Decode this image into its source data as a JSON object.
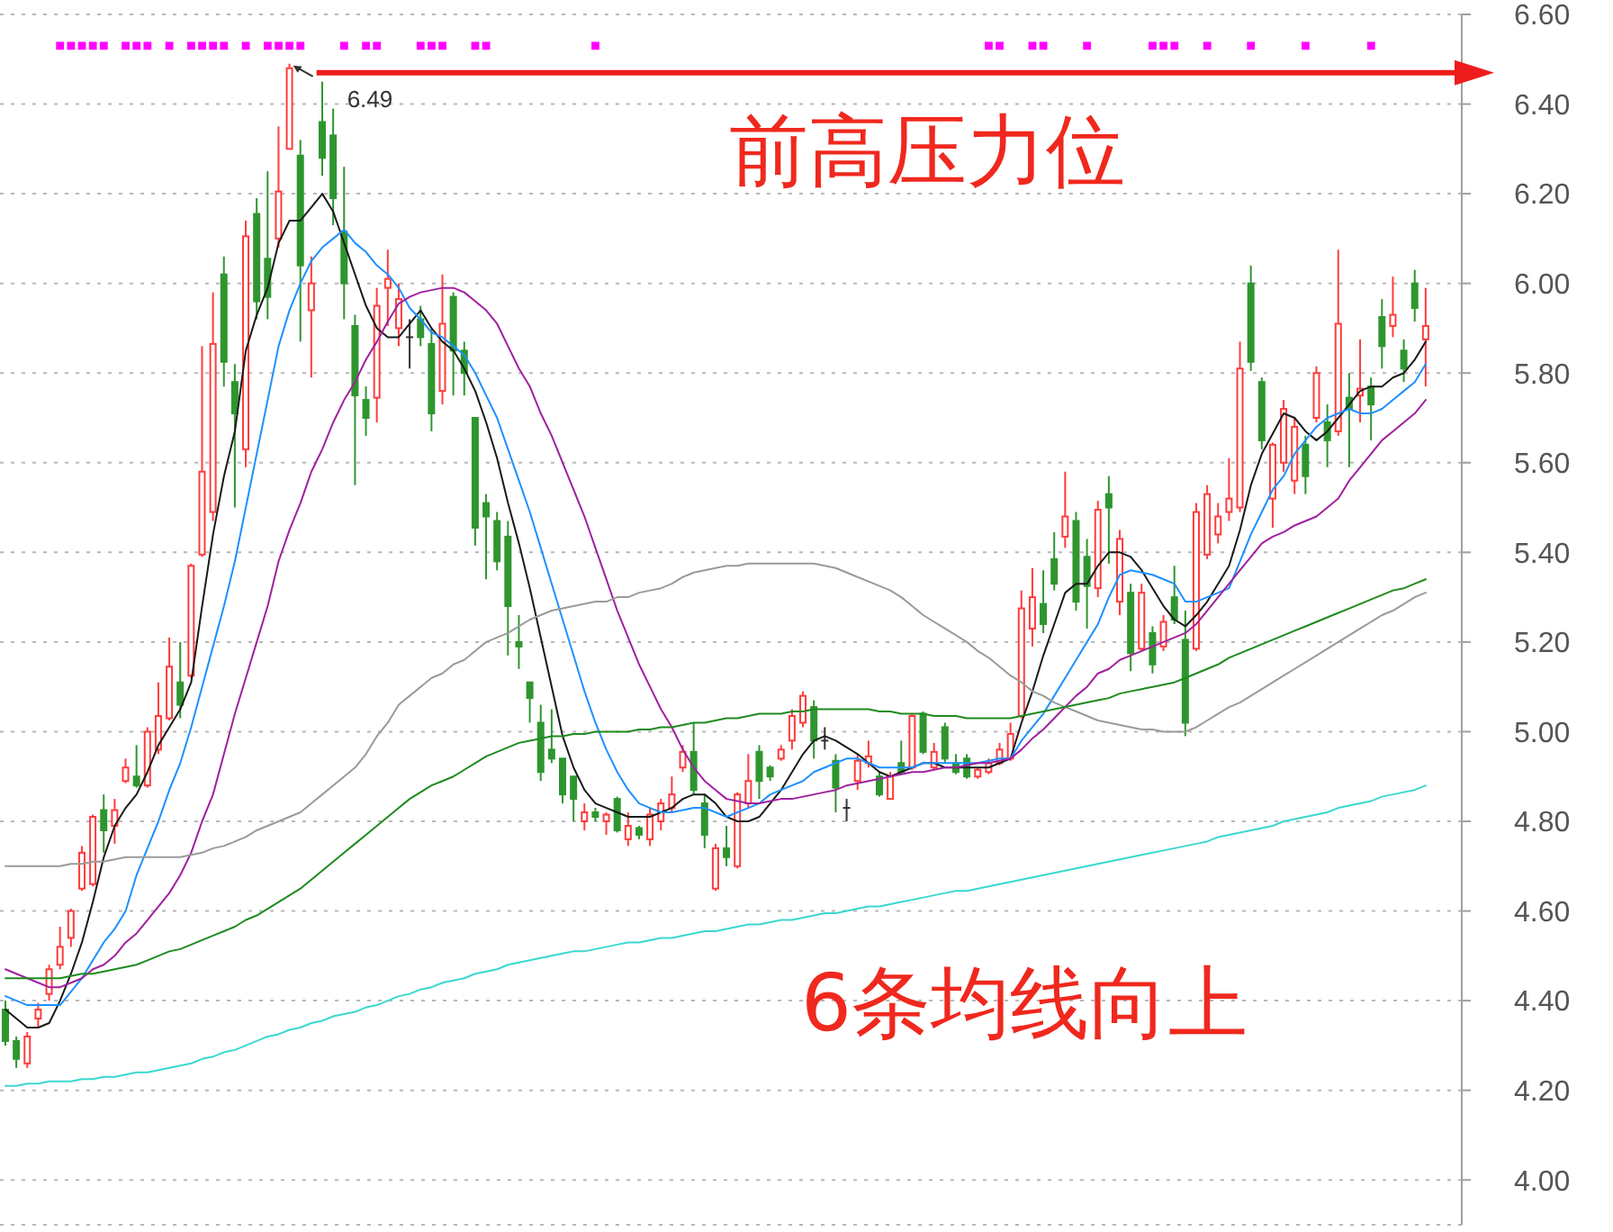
{
  "chart_data": {
    "type": "candlestick",
    "categories": [
      null,
      null,
      null,
      null,
      null,
      null,
      null,
      null,
      null,
      null,
      null,
      null,
      null,
      null,
      null,
      null,
      null,
      null,
      null,
      null,
      null,
      null,
      null,
      null,
      null,
      null,
      null,
      null,
      null,
      null,
      null,
      null,
      null,
      null,
      null,
      null,
      null,
      null,
      null,
      null,
      null,
      null,
      null,
      null,
      null,
      null,
      null,
      null,
      null,
      null,
      null,
      null,
      null,
      null,
      null,
      null,
      null,
      null,
      null,
      null,
      null,
      null,
      null,
      null,
      null,
      null,
      null,
      null,
      null,
      null,
      null,
      null,
      null,
      null,
      null,
      null,
      null,
      null,
      null,
      null,
      null,
      null,
      null,
      null,
      null,
      null,
      null,
      null,
      null,
      null,
      null,
      null,
      null,
      null,
      null,
      null,
      null,
      null,
      null,
      null,
      null,
      null,
      null,
      null,
      null,
      null,
      null,
      null,
      null,
      null,
      null,
      null,
      null,
      null,
      null,
      null,
      null,
      null,
      null,
      null,
      null,
      null,
      null,
      null,
      null,
      null,
      null,
      null,
      null,
      null,
      null
    ],
    "ohlc": [
      [
        4.38,
        4.4,
        4.3,
        4.31
      ],
      [
        4.31,
        4.32,
        4.25,
        4.27
      ],
      [
        4.26,
        4.33,
        4.25,
        4.32
      ],
      [
        4.36,
        4.395,
        4.34,
        4.38
      ],
      [
        4.415,
        4.48,
        4.4,
        4.47
      ],
      [
        4.48,
        4.565,
        4.47,
        4.52
      ],
      [
        4.54,
        4.605,
        4.52,
        4.6
      ],
      [
        4.65,
        4.745,
        4.645,
        4.73
      ],
      [
        4.66,
        4.815,
        4.655,
        4.81
      ],
      [
        4.825,
        4.86,
        4.73,
        4.78
      ],
      [
        4.79,
        4.85,
        4.75,
        4.825
      ],
      [
        4.89,
        4.94,
        4.885,
        4.92
      ],
      [
        4.9,
        4.97,
        4.875,
        4.88
      ],
      [
        4.88,
        5.01,
        4.875,
        5.0
      ],
      [
        4.96,
        5.11,
        4.95,
        5.035
      ],
      [
        5.03,
        5.21,
        5.025,
        5.145
      ],
      [
        5.11,
        5.2,
        5.03,
        5.06
      ],
      [
        5.125,
        5.375,
        5.12,
        5.37
      ],
      [
        5.395,
        5.86,
        5.39,
        5.58
      ],
      [
        5.49,
        5.98,
        5.47,
        5.865
      ],
      [
        6.02,
        6.06,
        5.77,
        5.825
      ],
      [
        5.78,
        5.82,
        5.5,
        5.71
      ],
      [
        5.63,
        6.14,
        5.59,
        6.105
      ],
      [
        6.155,
        6.19,
        5.92,
        5.96
      ],
      [
        6.055,
        6.25,
        5.92,
        5.97
      ],
      [
        6.1,
        6.35,
        6.08,
        6.205
      ],
      [
        6.3,
        6.49,
        6.3,
        6.48
      ],
      [
        6.285,
        6.32,
        5.87,
        6.04
      ],
      [
        5.94,
        6.06,
        5.79,
        6.0
      ],
      [
        6.36,
        6.45,
        6.24,
        6.28
      ],
      [
        6.33,
        6.39,
        6.13,
        6.19
      ],
      [
        6.115,
        6.26,
        5.92,
        6.0
      ],
      [
        5.905,
        5.93,
        5.55,
        5.75
      ],
      [
        5.74,
        5.77,
        5.66,
        5.7
      ],
      [
        5.745,
        5.99,
        5.69,
        5.95
      ],
      [
        5.99,
        6.075,
        5.905,
        6.01
      ],
      [
        5.9,
        6.0,
        5.86,
        5.965
      ],
      [
        5.88,
        5.92,
        5.81,
        5.88
      ],
      [
        5.92,
        5.95,
        5.86,
        5.88
      ],
      [
        5.865,
        5.9,
        5.67,
        5.71
      ],
      [
        5.76,
        6.02,
        5.73,
        5.91
      ],
      [
        5.97,
        5.98,
        5.75,
        5.85
      ],
      [
        5.85,
        5.87,
        5.75,
        5.8
      ],
      [
        5.7,
        5.7,
        5.415,
        5.455
      ],
      [
        5.51,
        5.53,
        5.34,
        5.48
      ],
      [
        5.47,
        5.49,
        5.36,
        5.38
      ],
      [
        5.435,
        5.47,
        5.17,
        5.28
      ],
      [
        5.2,
        5.26,
        5.14,
        5.19
      ],
      [
        5.11,
        5.11,
        5.02,
        5.075
      ],
      [
        5.02,
        5.06,
        4.89,
        4.91
      ],
      [
        4.96,
        5.05,
        4.93,
        4.94
      ],
      [
        4.94,
        4.94,
        4.84,
        4.86
      ],
      [
        4.9,
        4.9,
        4.8,
        4.85
      ],
      [
        4.8,
        4.84,
        4.78,
        4.82
      ],
      [
        4.82,
        4.83,
        4.8,
        4.81
      ],
      [
        4.8,
        4.82,
        4.77,
        4.815
      ],
      [
        4.85,
        4.855,
        4.775,
        4.78
      ],
      [
        4.76,
        4.82,
        4.745,
        4.79
      ],
      [
        4.785,
        4.79,
        4.76,
        4.77
      ],
      [
        4.76,
        4.83,
        4.745,
        4.815
      ],
      [
        4.8,
        4.85,
        4.78,
        4.84
      ],
      [
        4.83,
        4.9,
        4.82,
        4.86
      ],
      [
        4.92,
        4.97,
        4.91,
        4.955
      ],
      [
        4.955,
        5.02,
        4.86,
        4.87
      ],
      [
        4.84,
        4.86,
        4.74,
        4.77
      ],
      [
        4.65,
        4.75,
        4.645,
        4.74
      ],
      [
        4.74,
        4.79,
        4.7,
        4.72
      ],
      [
        4.7,
        4.865,
        4.695,
        4.86
      ],
      [
        4.84,
        4.95,
        4.83,
        4.89
      ],
      [
        4.955,
        4.97,
        4.85,
        4.89
      ],
      [
        4.92,
        4.925,
        4.89,
        4.9
      ],
      [
        4.94,
        4.97,
        4.935,
        4.96
      ],
      [
        4.98,
        5.05,
        4.96,
        5.035
      ],
      [
        5.02,
        5.09,
        5.01,
        5.08
      ],
      [
        5.055,
        5.07,
        4.94,
        4.98
      ],
      [
        4.98,
        5.01,
        4.96,
        4.98
      ],
      [
        4.935,
        4.95,
        4.82,
        4.875
      ],
      [
        4.83,
        4.85,
        4.8,
        4.83
      ],
      [
        4.89,
        4.95,
        4.87,
        4.935
      ],
      [
        4.93,
        4.98,
        4.92,
        4.945
      ],
      [
        4.9,
        4.91,
        4.855,
        4.86
      ],
      [
        4.85,
        4.91,
        4.85,
        4.9
      ],
      [
        4.93,
        4.98,
        4.905,
        4.91
      ],
      [
        4.92,
        5.04,
        4.915,
        5.035
      ],
      [
        5.04,
        5.045,
        4.95,
        4.955
      ],
      [
        4.92,
        4.975,
        4.915,
        4.955
      ],
      [
        5.01,
        5.02,
        4.93,
        4.94
      ],
      [
        4.93,
        4.95,
        4.905,
        4.91
      ],
      [
        4.94,
        4.95,
        4.895,
        4.9
      ],
      [
        4.9,
        4.92,
        4.895,
        4.915
      ],
      [
        4.91,
        4.94,
        4.905,
        4.93
      ],
      [
        4.93,
        4.975,
        4.925,
        4.96
      ],
      [
        4.94,
        5.02,
        4.935,
        4.995
      ],
      [
        5.035,
        5.315,
        5.03,
        5.275
      ],
      [
        5.23,
        5.365,
        5.19,
        5.3
      ],
      [
        5.285,
        5.36,
        5.22,
        5.24
      ],
      [
        5.385,
        5.445,
        5.315,
        5.33
      ],
      [
        5.435,
        5.58,
        5.41,
        5.48
      ],
      [
        5.47,
        5.49,
        5.27,
        5.29
      ],
      [
        5.39,
        5.43,
        5.23,
        5.325
      ],
      [
        5.32,
        5.515,
        5.3,
        5.495
      ],
      [
        5.53,
        5.57,
        5.375,
        5.5
      ],
      [
        5.29,
        5.45,
        5.26,
        5.43
      ],
      [
        5.31,
        5.33,
        5.135,
        5.175
      ],
      [
        5.185,
        5.33,
        5.18,
        5.31
      ],
      [
        5.22,
        5.235,
        5.13,
        5.15
      ],
      [
        5.19,
        5.26,
        5.18,
        5.245
      ],
      [
        5.3,
        5.37,
        5.24,
        5.25
      ],
      [
        5.205,
        5.27,
        4.99,
        5.02
      ],
      [
        5.185,
        5.51,
        5.18,
        5.49
      ],
      [
        5.395,
        5.55,
        5.385,
        5.53
      ],
      [
        5.44,
        5.51,
        5.42,
        5.48
      ],
      [
        5.49,
        5.61,
        5.47,
        5.52
      ],
      [
        5.5,
        5.87,
        5.49,
        5.81
      ],
      [
        6.0,
        6.04,
        5.805,
        5.825
      ],
      [
        5.78,
        5.79,
        5.63,
        5.65
      ],
      [
        5.52,
        5.645,
        5.455,
        5.64
      ],
      [
        5.6,
        5.74,
        5.58,
        5.72
      ],
      [
        5.56,
        5.7,
        5.53,
        5.68
      ],
      [
        5.64,
        5.66,
        5.53,
        5.57
      ],
      [
        5.7,
        5.815,
        5.69,
        5.8
      ],
      [
        5.69,
        5.73,
        5.59,
        5.65
      ],
      [
        5.67,
        6.075,
        5.66,
        5.91
      ],
      [
        5.745,
        5.8,
        5.59,
        5.72
      ],
      [
        5.75,
        5.875,
        5.69,
        5.765
      ],
      [
        5.77,
        5.79,
        5.65,
        5.73
      ],
      [
        5.925,
        5.965,
        5.81,
        5.86
      ],
      [
        5.905,
        6.015,
        5.88,
        5.93
      ],
      [
        5.85,
        5.875,
        5.78,
        5.81
      ],
      [
        6.0,
        6.03,
        5.915,
        5.945
      ],
      [
        5.875,
        5.99,
        5.77,
        5.905
      ]
    ],
    "colors": [
      "#2f962f",
      "#2f962f",
      "#ff3c3c",
      "#ff3c3c",
      "#ff3c3c",
      "#ff3c3c",
      "#ff3c3c",
      "#ff3c3c",
      "#ff3c3c",
      "#2f962f",
      "#ff3c3c",
      "#ff3c3c",
      "#2f962f",
      "#ff3c3c",
      "#ff3c3c",
      "#ff3c3c",
      "#2f962f",
      "#ff3c3c",
      "#ff3c3c",
      "#ff3c3c",
      "#2f962f",
      "#2f962f",
      "#ff3c3c",
      "#2f962f",
      "#2f962f",
      "#ff3c3c",
      "#ff3c3c",
      "#2f962f",
      "#ff3c3c",
      "#2f962f",
      "#2f962f",
      "#2f962f",
      "#2f962f",
      "#2f962f",
      "#ff3c3c",
      "#ff3c3c",
      "#ff3c3c",
      "#333333",
      "#2f962f",
      "#2f962f",
      "#ff3c3c",
      "#2f962f",
      "#2f962f",
      "#2f962f",
      "#2f962f",
      "#2f962f",
      "#2f962f",
      "#2f962f",
      "#2f962f",
      "#2f962f",
      "#2f962f",
      "#2f962f",
      "#2f962f",
      "#ff3c3c",
      "#2f962f",
      "#ff3c3c",
      "#2f962f",
      "#ff3c3c",
      "#2f962f",
      "#ff3c3c",
      "#ff3c3c",
      "#ff3c3c",
      "#ff3c3c",
      "#2f962f",
      "#2f962f",
      "#ff3c3c",
      "#2f962f",
      "#ff3c3c",
      "#ff3c3c",
      "#2f962f",
      "#2f962f",
      "#ff3c3c",
      "#ff3c3c",
      "#ff3c3c",
      "#2f962f",
      "#333333",
      "#2f962f",
      "#333333",
      "#ff3c3c",
      "#ff3c3c",
      "#2f962f",
      "#ff3c3c",
      "#2f962f",
      "#ff3c3c",
      "#2f962f",
      "#ff3c3c",
      "#2f962f",
      "#2f962f",
      "#2f962f",
      "#ff3c3c",
      "#ff3c3c",
      "#ff3c3c",
      "#ff3c3c",
      "#ff3c3c",
      "#ff3c3c",
      "#2f962f",
      "#2f962f",
      "#ff3c3c",
      "#2f962f",
      "#2f962f",
      "#ff3c3c",
      "#2f962f",
      "#ff3c3c",
      "#2f962f",
      "#ff3c3c",
      "#2f962f",
      "#ff3c3c",
      "#2f962f",
      "#2f962f",
      "#ff3c3c",
      "#ff3c3c",
      "#ff3c3c",
      "#ff3c3c",
      "#ff3c3c",
      "#2f962f",
      "#2f962f",
      "#ff3c3c",
      "#ff3c3c",
      "#ff3c3c",
      "#2f962f",
      "#ff3c3c",
      "#2f962f",
      "#ff3c3c",
      "#2f962f",
      "#ff3c3c",
      "#2f962f",
      "#2f962f",
      "#ff3c3c",
      "#2f962f",
      "#2f962f",
      "#ff3c3c"
    ],
    "series": [
      {
        "type": "line",
        "color": "#1a1a1a",
        "values": [
          4.38,
          4.36,
          4.34,
          4.34,
          4.35,
          4.4,
          4.46,
          4.53,
          4.62,
          4.72,
          4.79,
          4.83,
          4.86,
          4.91,
          4.97,
          5.01,
          5.05,
          5.11,
          5.28,
          5.44,
          5.57,
          5.67,
          5.85,
          5.93,
          5.99,
          6.09,
          6.14,
          6.14,
          6.17,
          6.2,
          6.16,
          6.09,
          6.02,
          5.95,
          5.9,
          5.88,
          5.88,
          5.91,
          5.94,
          5.9,
          5.87,
          5.85,
          5.81,
          5.76,
          5.69,
          5.61,
          5.51,
          5.42,
          5.32,
          5.21,
          5.1,
          4.99,
          4.92,
          4.87,
          4.84,
          4.83,
          4.82,
          4.81,
          4.81,
          4.81,
          4.82,
          4.83,
          4.85,
          4.86,
          4.86,
          4.84,
          4.81,
          4.8,
          4.8,
          4.81,
          4.84,
          4.87,
          4.91,
          4.95,
          4.98,
          4.99,
          4.98,
          4.965,
          4.95,
          4.93,
          4.91,
          4.9,
          4.91,
          4.92,
          4.93,
          4.93,
          4.92,
          4.92,
          4.92,
          4.92,
          4.92,
          4.93,
          4.94,
          5.02,
          5.09,
          5.17,
          5.24,
          5.31,
          5.33,
          5.33,
          5.37,
          5.4,
          5.4,
          5.39,
          5.36,
          5.32,
          5.28,
          5.25,
          5.235,
          5.26,
          5.29,
          5.33,
          5.37,
          5.45,
          5.55,
          5.62,
          5.665,
          5.71,
          5.7,
          5.67,
          5.65,
          5.67,
          5.7,
          5.73,
          5.76,
          5.77,
          5.77,
          5.79,
          5.8,
          5.83,
          5.87
        ]
      },
      {
        "type": "line",
        "color": "#1e90ff",
        "values": [
          4.41,
          4.4,
          4.39,
          4.39,
          4.39,
          4.39,
          4.42,
          4.45,
          4.49,
          4.53,
          4.56,
          4.6,
          4.68,
          4.74,
          4.8,
          4.87,
          4.93,
          5.01,
          5.1,
          5.19,
          5.28,
          5.38,
          5.5,
          5.62,
          5.74,
          5.86,
          5.94,
          6.0,
          6.05,
          6.08,
          6.1,
          6.12,
          6.09,
          6.07,
          6.04,
          6.02,
          5.99,
          5.945,
          5.92,
          5.89,
          5.88,
          5.86,
          5.84,
          5.8,
          5.75,
          5.7,
          5.63,
          5.56,
          5.49,
          5.41,
          5.33,
          5.25,
          5.17,
          5.09,
          5.02,
          4.96,
          4.91,
          4.87,
          4.84,
          4.83,
          4.82,
          4.82,
          4.825,
          4.83,
          4.83,
          4.82,
          4.81,
          4.82,
          4.83,
          4.84,
          4.86,
          4.87,
          4.88,
          4.89,
          4.91,
          4.92,
          4.93,
          4.94,
          4.94,
          4.93,
          4.92,
          4.92,
          4.92,
          4.92,
          4.93,
          4.93,
          4.93,
          4.93,
          4.93,
          4.93,
          4.935,
          4.94,
          4.94,
          4.98,
          5.01,
          5.04,
          5.08,
          5.12,
          5.16,
          5.2,
          5.24,
          5.3,
          5.35,
          5.36,
          5.355,
          5.35,
          5.34,
          5.33,
          5.29,
          5.29,
          5.3,
          5.31,
          5.32,
          5.38,
          5.44,
          5.49,
          5.54,
          5.57,
          5.62,
          5.65,
          5.68,
          5.7,
          5.71,
          5.72,
          5.71,
          5.71,
          5.72,
          5.74,
          5.76,
          5.78,
          5.82
        ]
      },
      {
        "type": "line",
        "color": "#a0209e",
        "values": [
          4.47,
          4.46,
          4.45,
          4.44,
          4.43,
          4.43,
          4.44,
          4.45,
          4.47,
          4.48,
          4.5,
          4.53,
          4.55,
          4.58,
          4.61,
          4.64,
          4.68,
          4.73,
          4.8,
          4.86,
          4.95,
          5.04,
          5.12,
          5.2,
          5.28,
          5.38,
          5.45,
          5.51,
          5.58,
          5.63,
          5.69,
          5.74,
          5.78,
          5.83,
          5.87,
          5.915,
          5.955,
          5.97,
          5.98,
          5.985,
          5.99,
          5.99,
          5.98,
          5.96,
          5.94,
          5.91,
          5.86,
          5.81,
          5.77,
          5.71,
          5.66,
          5.6,
          5.54,
          5.48,
          5.41,
          5.34,
          5.27,
          5.21,
          5.15,
          5.1,
          5.05,
          5.01,
          4.96,
          4.92,
          4.89,
          4.87,
          4.85,
          4.845,
          4.84,
          4.84,
          4.845,
          4.85,
          4.85,
          4.855,
          4.86,
          4.865,
          4.87,
          4.88,
          4.885,
          4.89,
          4.895,
          4.9,
          4.905,
          4.91,
          4.91,
          4.915,
          4.92,
          4.92,
          4.925,
          4.93,
          4.93,
          4.935,
          4.94,
          4.96,
          4.985,
          5.005,
          5.03,
          5.055,
          5.08,
          5.1,
          5.13,
          5.14,
          5.16,
          5.17,
          5.18,
          5.19,
          5.2,
          5.21,
          5.22,
          5.24,
          5.27,
          5.3,
          5.33,
          5.36,
          5.39,
          5.42,
          5.435,
          5.445,
          5.46,
          5.47,
          5.48,
          5.5,
          5.52,
          5.56,
          5.59,
          5.62,
          5.65,
          5.67,
          5.69,
          5.71,
          5.74
        ]
      },
      {
        "type": "line",
        "color": "#9a9a9a",
        "values": [
          4.7,
          4.7,
          4.7,
          4.7,
          4.7,
          4.7,
          4.705,
          4.705,
          4.71,
          4.71,
          4.715,
          4.72,
          4.72,
          4.72,
          4.72,
          4.72,
          4.72,
          4.725,
          4.73,
          4.74,
          4.745,
          4.755,
          4.765,
          4.78,
          4.79,
          4.8,
          4.81,
          4.82,
          4.84,
          4.86,
          4.88,
          4.9,
          4.92,
          4.95,
          4.99,
          5.02,
          5.06,
          5.08,
          5.1,
          5.12,
          5.13,
          5.15,
          5.16,
          5.18,
          5.2,
          5.21,
          5.22,
          5.235,
          5.25,
          5.26,
          5.27,
          5.275,
          5.28,
          5.285,
          5.29,
          5.29,
          5.3,
          5.3,
          5.31,
          5.315,
          5.32,
          5.33,
          5.345,
          5.355,
          5.36,
          5.365,
          5.37,
          5.37,
          5.375,
          5.375,
          5.375,
          5.375,
          5.375,
          5.375,
          5.375,
          5.37,
          5.365,
          5.355,
          5.345,
          5.335,
          5.325,
          5.315,
          5.3,
          5.28,
          5.26,
          5.245,
          5.23,
          5.215,
          5.2,
          5.18,
          5.165,
          5.145,
          5.125,
          5.11,
          5.09,
          5.08,
          5.065,
          5.055,
          5.045,
          5.035,
          5.025,
          5.02,
          5.015,
          5.01,
          5.005,
          5.005,
          5.0,
          5.0,
          5.0,
          5.01,
          5.025,
          5.04,
          5.055,
          5.065,
          5.08,
          5.095,
          5.11,
          5.125,
          5.14,
          5.155,
          5.17,
          5.185,
          5.2,
          5.215,
          5.23,
          5.245,
          5.26,
          5.27,
          5.285,
          5.3,
          5.31
        ]
      },
      {
        "type": "line",
        "color": "#1f8a1f",
        "values": [
          4.45,
          4.45,
          4.45,
          4.45,
          4.45,
          4.45,
          4.455,
          4.46,
          4.46,
          4.465,
          4.47,
          4.475,
          4.48,
          4.49,
          4.5,
          4.51,
          4.515,
          4.525,
          4.535,
          4.545,
          4.555,
          4.565,
          4.58,
          4.59,
          4.605,
          4.62,
          4.635,
          4.65,
          4.67,
          4.69,
          4.71,
          4.73,
          4.75,
          4.77,
          4.79,
          4.81,
          4.83,
          4.85,
          4.865,
          4.88,
          4.89,
          4.9,
          4.915,
          4.93,
          4.945,
          4.955,
          4.965,
          4.975,
          4.98,
          4.985,
          4.99,
          4.99,
          4.995,
          4.995,
          5.0,
          5.0,
          5.0,
          5.0,
          5.005,
          5.005,
          5.01,
          5.01,
          5.015,
          5.02,
          5.02,
          5.025,
          5.03,
          5.03,
          5.035,
          5.04,
          5.04,
          5.04,
          5.045,
          5.045,
          5.05,
          5.05,
          5.05,
          5.05,
          5.05,
          5.05,
          5.045,
          5.045,
          5.04,
          5.04,
          5.04,
          5.035,
          5.035,
          5.035,
          5.03,
          5.03,
          5.03,
          5.03,
          5.03,
          5.035,
          5.04,
          5.045,
          5.05,
          5.055,
          5.06,
          5.065,
          5.07,
          5.075,
          5.085,
          5.09,
          5.095,
          5.1,
          5.105,
          5.11,
          5.12,
          5.13,
          5.14,
          5.15,
          5.165,
          5.175,
          5.185,
          5.195,
          5.205,
          5.215,
          5.225,
          5.235,
          5.245,
          5.255,
          5.265,
          5.275,
          5.285,
          5.295,
          5.305,
          5.315,
          5.32,
          5.33,
          5.34
        ]
      },
      {
        "type": "line",
        "color": "#3ad8d0",
        "values": [
          4.21,
          4.21,
          4.215,
          4.215,
          4.22,
          4.22,
          4.22,
          4.225,
          4.225,
          4.23,
          4.23,
          4.235,
          4.24,
          4.24,
          4.245,
          4.25,
          4.255,
          4.26,
          4.27,
          4.275,
          4.285,
          4.29,
          4.3,
          4.31,
          4.32,
          4.325,
          4.335,
          4.34,
          4.35,
          4.355,
          4.365,
          4.37,
          4.375,
          4.385,
          4.39,
          4.4,
          4.41,
          4.415,
          4.425,
          4.43,
          4.44,
          4.445,
          4.45,
          4.46,
          4.465,
          4.47,
          4.48,
          4.485,
          4.49,
          4.495,
          4.5,
          4.505,
          4.51,
          4.51,
          4.515,
          4.52,
          4.525,
          4.53,
          4.53,
          4.535,
          4.54,
          4.54,
          4.545,
          4.55,
          4.555,
          4.555,
          4.56,
          4.565,
          4.57,
          4.57,
          4.575,
          4.58,
          4.58,
          4.585,
          4.59,
          4.595,
          4.595,
          4.6,
          4.605,
          4.61,
          4.61,
          4.615,
          4.62,
          4.625,
          4.63,
          4.635,
          4.64,
          4.645,
          4.645,
          4.65,
          4.655,
          4.66,
          4.665,
          4.67,
          4.675,
          4.68,
          4.685,
          4.69,
          4.695,
          4.7,
          4.705,
          4.71,
          4.715,
          4.72,
          4.725,
          4.73,
          4.735,
          4.74,
          4.745,
          4.75,
          4.755,
          4.765,
          4.77,
          4.775,
          4.78,
          4.785,
          4.79,
          4.8,
          4.805,
          4.81,
          4.815,
          4.82,
          4.83,
          4.835,
          4.84,
          4.845,
          4.855,
          4.86,
          4.865,
          4.87,
          4.88
        ]
      },
      {
        "type": "scatter",
        "color": "#ff00ff",
        "marker": "square",
        "values": [
          null,
          null,
          null,
          null,
          null,
          6.53,
          6.53,
          6.53,
          6.53,
          6.53,
          null,
          6.53,
          6.53,
          6.53,
          null,
          6.53,
          null,
          6.53,
          6.53,
          6.53,
          6.53,
          null,
          6.53,
          null,
          6.53,
          6.53,
          6.53,
          6.53,
          null,
          null,
          null,
          6.53,
          null,
          6.53,
          6.53,
          null,
          null,
          null,
          6.53,
          6.53,
          6.53,
          null,
          null,
          6.53,
          6.53,
          null,
          null,
          null,
          null,
          null,
          null,
          null,
          null,
          null,
          6.53,
          null,
          null,
          null,
          null,
          null,
          null,
          null,
          null,
          null,
          null,
          null,
          null,
          null,
          null,
          null,
          null,
          null,
          null,
          null,
          null,
          null,
          null,
          null,
          null,
          null,
          null,
          null,
          null,
          null,
          null,
          null,
          null,
          null,
          null,
          null,
          6.53,
          6.53,
          null,
          null,
          6.53,
          6.53,
          null,
          null,
          null,
          6.53,
          null,
          null,
          null,
          null,
          null,
          6.53,
          6.53,
          6.53,
          null,
          null,
          6.53,
          null,
          null,
          null,
          6.53,
          null,
          null,
          null,
          null,
          6.53,
          null,
          null,
          null,
          null,
          null,
          6.53,
          null,
          null,
          null,
          null,
          null
        ]
      }
    ],
    "ylim": [
      3.9,
      6.6
    ],
    "yticks": [
      {
        "value": 4,
        "label": "4.00"
      },
      {
        "value": 4.2,
        "label": "4.20"
      },
      {
        "value": 4.4,
        "label": "4.40"
      },
      {
        "value": 4.6,
        "label": "4.60"
      },
      {
        "value": 4.8,
        "label": "4.80"
      },
      {
        "value": 5,
        "label": "5.00"
      },
      {
        "value": 5.2,
        "label": "5.20"
      },
      {
        "value": 5.4,
        "label": "5.40"
      },
      {
        "value": 5.6,
        "label": "5.60"
      },
      {
        "value": 5.8,
        "label": "5.80"
      },
      {
        "value": 6,
        "label": "6.00"
      },
      {
        "value": 6.2,
        "label": "6.20"
      },
      {
        "value": 6.4,
        "label": "6.40"
      },
      {
        "value": 6.6,
        "label": "6.60"
      }
    ],
    "grid": "y",
    "tick_labels": "y",
    "annotations": [
      "6.49",
      "前高压力位",
      "6条均线向上"
    ]
  }
}
